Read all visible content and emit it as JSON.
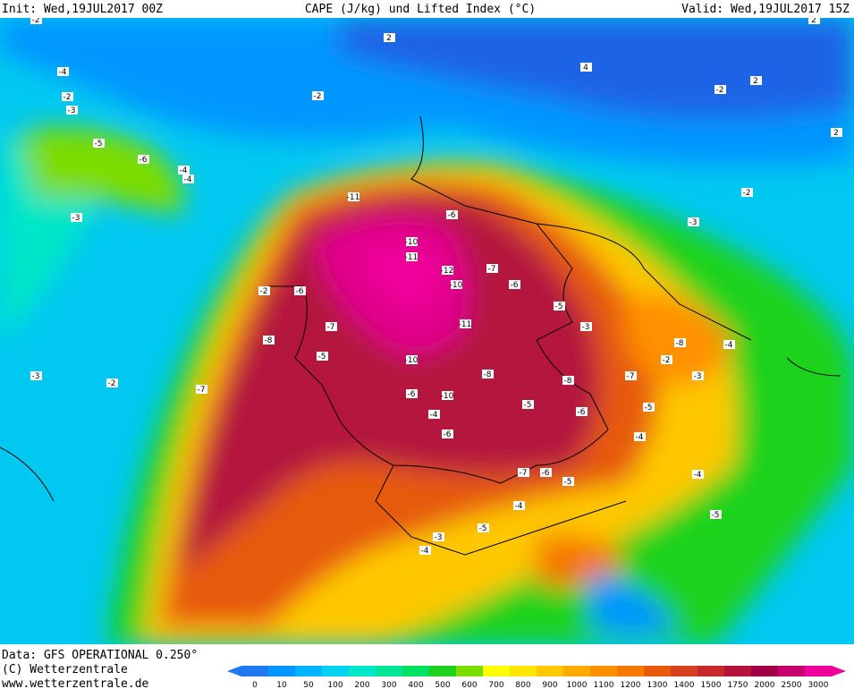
{
  "header": {
    "init": "Init: Wed,19JUL2017 00Z",
    "title": "CAPE (J/kg) und Lifted Index (°C)",
    "valid": "Valid: Wed,19JUL2017 15Z"
  },
  "footer": {
    "source": "Data: GFS OPERATIONAL 0.250°",
    "copyright": "(C) Wetterzentrale",
    "url": "www.wetterzentrale.de"
  },
  "colorbar": [
    {
      "label": "0",
      "color": "#1e78f0"
    },
    {
      "label": "10",
      "color": "#0096ff"
    },
    {
      "label": "50",
      "color": "#00b4ff"
    },
    {
      "label": "100",
      "color": "#00d2f0"
    },
    {
      "label": "200",
      "color": "#00e6c8"
    },
    {
      "label": "300",
      "color": "#00e696"
    },
    {
      "label": "400",
      "color": "#00e164"
    },
    {
      "label": "500",
      "color": "#1ed21e"
    },
    {
      "label": "600",
      "color": "#7ddc00"
    },
    {
      "label": "700",
      "color": "#ffff00"
    },
    {
      "label": "800",
      "color": "#ffe600"
    },
    {
      "label": "900",
      "color": "#ffc800"
    },
    {
      "label": "1000",
      "color": "#ffaa00"
    },
    {
      "label": "1100",
      "color": "#ff9100"
    },
    {
      "label": "1200",
      "color": "#f57800"
    },
    {
      "label": "1300",
      "color": "#e65a0a"
    },
    {
      "label": "1400",
      "color": "#d7401e"
    },
    {
      "label": "1500",
      "color": "#c8282d"
    },
    {
      "label": "1750",
      "color": "#b4143c"
    },
    {
      "label": "2000",
      "color": "#a00046"
    },
    {
      "label": "2500",
      "color": "#c8006e"
    },
    {
      "label": "3000",
      "color": "#f0009b"
    }
  ],
  "li_labels": [
    -2,
    -4,
    -2,
    -3,
    -4,
    -5,
    -6,
    -4,
    -3,
    -2,
    -2,
    -2,
    -3,
    -5,
    -6,
    -11,
    -10,
    -11,
    -12,
    -10,
    -11,
    -10,
    -8,
    -6,
    -7,
    -5,
    -6,
    -7,
    -10,
    -8,
    -7,
    -5,
    -6,
    -4,
    -3,
    -2,
    -7,
    -8,
    -6,
    -5,
    -4,
    -5,
    -6,
    -3,
    -4,
    -5,
    -3,
    -2,
    -4,
    -8,
    -7,
    -6,
    -5,
    -4,
    -3,
    -2,
    -5,
    -4,
    2,
    2,
    4,
    2,
    2
  ]
}
